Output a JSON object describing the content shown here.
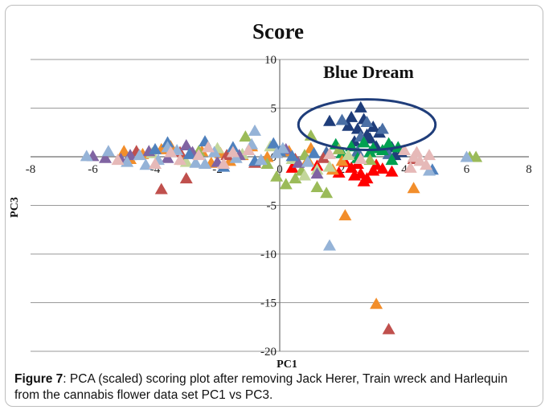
{
  "chart_data": {
    "type": "scatter",
    "title": "Score",
    "xlabel": "PC1",
    "ylabel": "PC3",
    "xlim": [
      -8,
      8
    ],
    "ylim": [
      -20,
      10
    ],
    "x_ticks": [
      -8,
      -6,
      -4,
      -2,
      0,
      2,
      4,
      6,
      8
    ],
    "y_ticks": [
      -20,
      -15,
      -10,
      -5,
      0,
      5,
      10
    ],
    "grid": "horizontal",
    "marker": "triangle",
    "annotation": {
      "text": "Blue Dream",
      "ellipse_center": [
        2.8,
        3.3
      ],
      "ellipse_radii": [
        2.2,
        2.6
      ]
    },
    "series": [
      {
        "color": "#1f3d7a",
        "points": [
          [
            1.6,
            3.6
          ],
          [
            2.3,
            4.0
          ],
          [
            2.6,
            5.0
          ],
          [
            2.7,
            3.8
          ],
          [
            3.0,
            3.0
          ],
          [
            2.5,
            2.8
          ],
          [
            2.2,
            3.1
          ],
          [
            3.2,
            2.4
          ],
          [
            2.9,
            1.8
          ],
          [
            2.4,
            1.5
          ],
          [
            3.1,
            1.0
          ],
          [
            3.6,
            0.9
          ],
          [
            3.9,
            0.4
          ],
          [
            3.7,
            0.1
          ],
          [
            2.8,
            2.2
          ]
        ]
      },
      {
        "color": "#4a6fa5",
        "points": [
          [
            2.8,
            3.5
          ],
          [
            2.0,
            3.7
          ],
          [
            3.3,
            2.8
          ],
          [
            2.6,
            2.0
          ],
          [
            2.5,
            0.5
          ],
          [
            1.5,
            0.4
          ],
          [
            3.5,
            0.2
          ]
        ]
      },
      {
        "color": "#ff0000",
        "points": [
          [
            2.3,
            -1.2
          ],
          [
            2.6,
            -1.8
          ],
          [
            2.8,
            -2.3
          ],
          [
            3.0,
            -1.5
          ],
          [
            3.3,
            -1.3
          ],
          [
            2.5,
            -0.8
          ],
          [
            2.1,
            -0.6
          ],
          [
            1.9,
            -1.7
          ],
          [
            2.7,
            -2.6
          ],
          [
            3.6,
            -1.6
          ],
          [
            1.2,
            -1.0
          ],
          [
            0.4,
            -1.2
          ],
          [
            3.1,
            -0.9
          ],
          [
            2.4,
            -2.0
          ]
        ]
      },
      {
        "color": "#00a050",
        "points": [
          [
            2.3,
            1.0
          ],
          [
            2.7,
            1.4
          ],
          [
            3.0,
            0.8
          ],
          [
            3.5,
            1.3
          ],
          [
            2.0,
            0.3
          ],
          [
            2.9,
            0.4
          ],
          [
            3.3,
            0.6
          ],
          [
            1.8,
            1.2
          ],
          [
            3.8,
            0.9
          ],
          [
            2.5,
            -0.2
          ],
          [
            3.6,
            -0.4
          ]
        ]
      },
      {
        "color": "#f28e2b",
        "points": [
          [
            -5.0,
            0.5
          ],
          [
            -4.4,
            0.2
          ],
          [
            -3.8,
            0.7
          ],
          [
            -3.1,
            -0.4
          ],
          [
            -2.5,
            0.5
          ],
          [
            -1.9,
            0.3
          ],
          [
            -1.2,
            0.1
          ],
          [
            -0.4,
            -0.1
          ],
          [
            0.3,
            0.5
          ],
          [
            1.0,
            0.8
          ],
          [
            -3.5,
            1.0
          ],
          [
            2.0,
            -0.5
          ],
          [
            -2.2,
            -0.7
          ],
          [
            1.7,
            -1.4
          ],
          [
            -0.9,
            1.0
          ],
          [
            0.9,
            -0.4
          ],
          [
            -1.6,
            -0.5
          ],
          [
            -4.8,
            -0.3
          ],
          [
            2.1,
            -6.1
          ],
          [
            3.1,
            -15.2
          ],
          [
            4.3,
            -3.3
          ]
        ]
      },
      {
        "color": "#c0504d",
        "points": [
          [
            -3.8,
            -3.4
          ],
          [
            -3.0,
            -2.3
          ],
          [
            -4.6,
            0.5
          ],
          [
            -3.2,
            0.4
          ],
          [
            -1.7,
            0.1
          ],
          [
            0.5,
            -0.3
          ],
          [
            3.5,
            -17.8
          ],
          [
            4.3,
            -0.3
          ],
          [
            -0.8,
            -0.7
          ],
          [
            1.4,
            -0.2
          ]
        ]
      },
      {
        "color": "#9bbb59",
        "points": [
          [
            -1.1,
            2.0
          ],
          [
            1.0,
            2.1
          ],
          [
            0.8,
            0.1
          ],
          [
            -0.4,
            -0.8
          ],
          [
            0.2,
            -2.9
          ],
          [
            0.5,
            -2.3
          ],
          [
            1.2,
            -3.2
          ],
          [
            1.5,
            -3.8
          ],
          [
            -0.1,
            -2.1
          ],
          [
            0.7,
            -1.5
          ],
          [
            6.1,
            -0.1
          ],
          [
            6.3,
            -0.1
          ],
          [
            -2.6,
            0.5
          ],
          [
            1.9,
            0.7
          ],
          [
            2.9,
            -0.4
          ]
        ]
      },
      {
        "color": "#c3d69b",
        "points": [
          [
            -2.0,
            0.8
          ],
          [
            -1.2,
            0.2
          ],
          [
            0.4,
            -0.3
          ],
          [
            1.2,
            -1.4
          ],
          [
            -3.0,
            -0.6
          ],
          [
            -0.3,
            1.0
          ],
          [
            0.8,
            -2.0
          ],
          [
            2.2,
            0.1
          ],
          [
            -4.1,
            0.3
          ],
          [
            1.6,
            -1.1
          ]
        ]
      },
      {
        "color": "#8064a2",
        "points": [
          [
            -6.0,
            0.0
          ],
          [
            -5.6,
            -0.2
          ],
          [
            -5.1,
            -0.3
          ],
          [
            -4.8,
            0.1
          ],
          [
            -3.6,
            -0.2
          ],
          [
            -2.8,
            0.4
          ],
          [
            -2.0,
            -0.6
          ],
          [
            -1.3,
            0.1
          ],
          [
            1.2,
            -1.8
          ],
          [
            0.6,
            -0.7
          ],
          [
            -4.2,
            0.5
          ],
          [
            -3.0,
            1.1
          ],
          [
            0.2,
            0.7
          ]
        ]
      },
      {
        "color": "#4f81bd",
        "points": [
          [
            -3.6,
            1.4
          ],
          [
            -2.4,
            1.5
          ],
          [
            -1.5,
            0.9
          ],
          [
            -0.8,
            -0.5
          ],
          [
            0.0,
            0.5
          ],
          [
            0.4,
            0.0
          ],
          [
            1.1,
            0.3
          ],
          [
            4.9,
            -1.4
          ],
          [
            -2.9,
            0.2
          ],
          [
            -4.0,
            0.7
          ],
          [
            -1.8,
            -1.1
          ],
          [
            -0.2,
            1.3
          ]
        ]
      },
      {
        "color": "#95b3d7",
        "points": [
          [
            -6.2,
            0.0
          ],
          [
            -5.5,
            0.5
          ],
          [
            -4.9,
            -0.6
          ],
          [
            -4.5,
            0.1
          ],
          [
            -3.9,
            -0.4
          ],
          [
            -3.3,
            0.6
          ],
          [
            -2.7,
            -0.7
          ],
          [
            -2.1,
            0.4
          ],
          [
            -1.4,
            -0.2
          ],
          [
            -0.9,
            1.2
          ],
          [
            -0.6,
            -0.4
          ],
          [
            0.1,
            0.8
          ],
          [
            0.9,
            -0.6
          ],
          [
            1.6,
            -9.2
          ],
          [
            4.8,
            -1.5
          ],
          [
            6.0,
            -0.1
          ],
          [
            -4.3,
            -0.9
          ],
          [
            -3.6,
            0.9
          ],
          [
            -0.1,
            0.3
          ],
          [
            -2.4,
            -0.8
          ],
          [
            -0.8,
            2.6
          ]
        ]
      },
      {
        "color": "#e6b9b8",
        "points": [
          [
            -5.2,
            -0.4
          ],
          [
            -4.0,
            -0.8
          ],
          [
            -3.2,
            -0.4
          ],
          [
            -2.6,
            0.1
          ],
          [
            -1.8,
            -0.8
          ],
          [
            -1.0,
            0.6
          ],
          [
            1.6,
            0.2
          ],
          [
            4.0,
            0.6
          ],
          [
            4.4,
            0.4
          ],
          [
            4.8,
            0.1
          ],
          [
            4.5,
            -0.5
          ],
          [
            4.2,
            -1.2
          ],
          [
            4.7,
            -0.9
          ],
          [
            4.3,
            -0.1
          ],
          [
            -3.5,
            0.4
          ],
          [
            -2.3,
            0.9
          ],
          [
            -1.5,
            0.4
          ],
          [
            2.6,
            -0.3
          ]
        ]
      }
    ]
  },
  "caption": {
    "label": "Figure 7",
    "text": ": PCA (scaled) scoring plot after removing Jack Herer, Train wreck and Harlequin from the cannabis flower data set PC1 vs PC3."
  }
}
